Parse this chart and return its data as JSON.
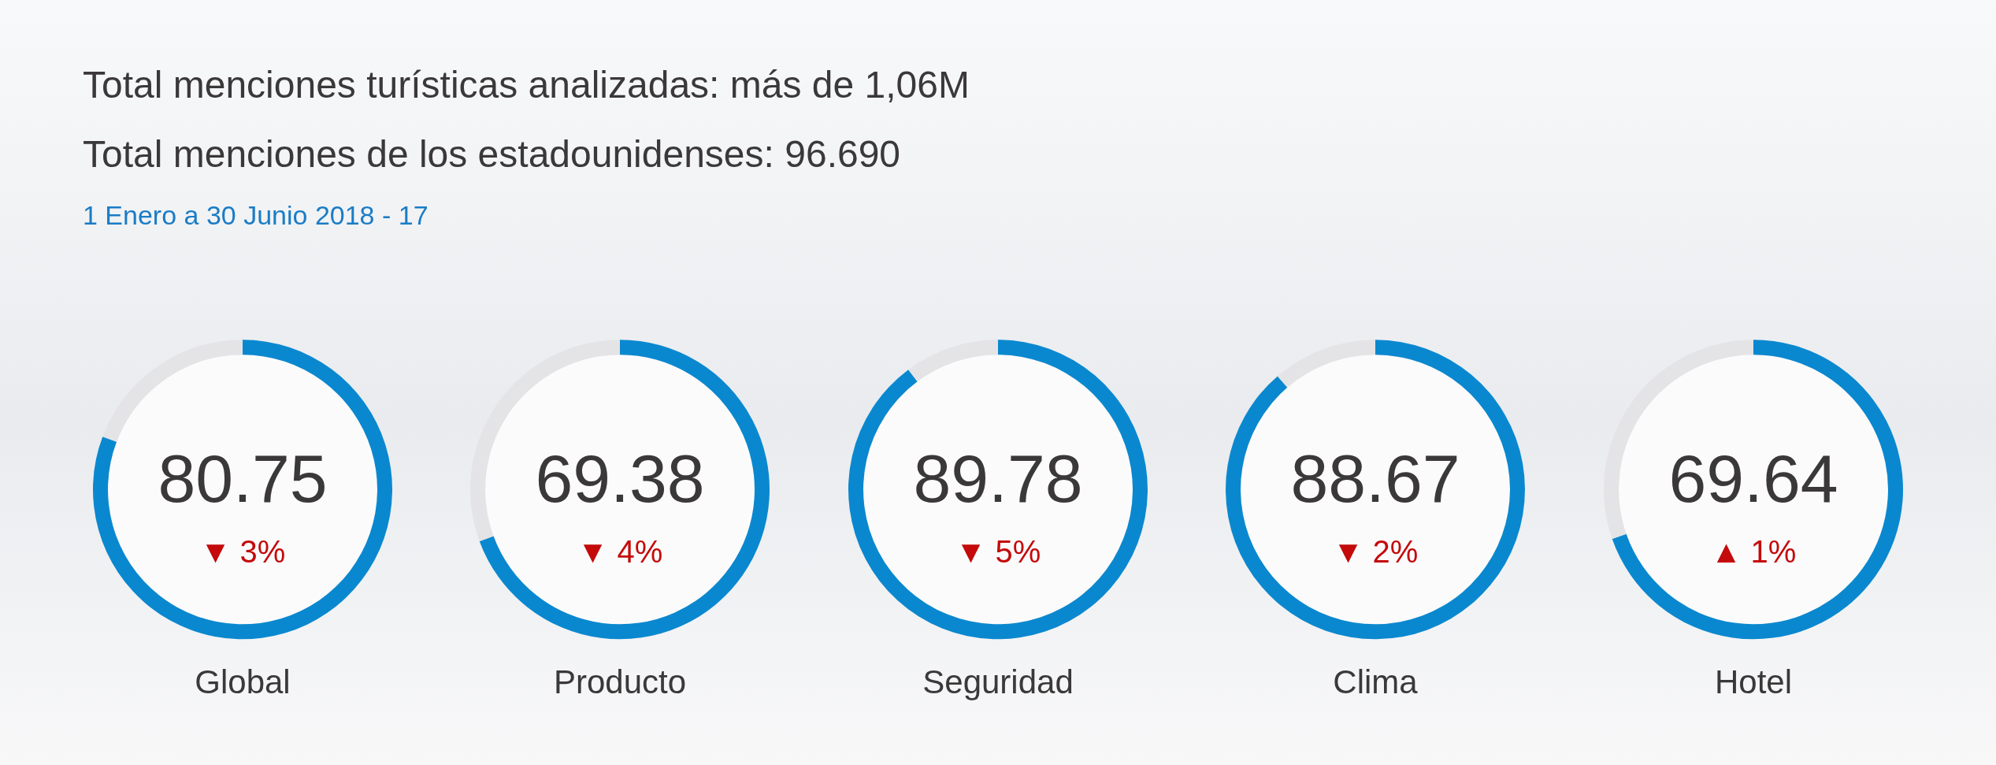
{
  "chart_data": [
    {
      "type": "other",
      "title": "Total menciones turísticas analizadas: más de 1,06M",
      "subtitle": "Total menciones de los estadounidenses: 96.690",
      "annotations": [
        "1 Enero a 30 Junio 2018 - 17"
      ]
    },
    {
      "type": "donut",
      "title": "Global",
      "categories": [
        null,
        null
      ],
      "values": [
        80.75,
        19.25
      ],
      "colors": [
        "#0a88cf",
        "#e4e4e6"
      ],
      "value_labels": [
        "80.75",
        null
      ],
      "annotations": [
        "▼ 3%"
      ]
    },
    {
      "type": "donut",
      "title": "Producto",
      "categories": [
        null,
        null
      ],
      "values": [
        69.38,
        30.62
      ],
      "colors": [
        "#0a88cf",
        "#e4e4e6"
      ],
      "value_labels": [
        "69.38",
        null
      ],
      "annotations": [
        "▼ 4%"
      ]
    },
    {
      "type": "donut",
      "title": "Seguridad",
      "categories": [
        null,
        null
      ],
      "values": [
        89.78,
        10.22
      ],
      "colors": [
        "#0a88cf",
        "#e4e4e6"
      ],
      "value_labels": [
        "89.78",
        null
      ],
      "annotations": [
        "▼ 5%"
      ]
    },
    {
      "type": "donut",
      "title": "Clima",
      "categories": [
        null,
        null
      ],
      "values": [
        88.67,
        11.33
      ],
      "colors": [
        "#0a88cf",
        "#e4e4e6"
      ],
      "value_labels": [
        "88.67",
        null
      ],
      "annotations": [
        "▼ 2%"
      ]
    },
    {
      "type": "donut",
      "title": "Hotel",
      "categories": [
        null,
        null
      ],
      "values": [
        69.64,
        30.36
      ],
      "colors": [
        "#0a88cf",
        "#e4e4e6"
      ],
      "value_labels": [
        "69.64",
        null
      ],
      "annotations": [
        "▲ 1%"
      ]
    }
  ]
}
